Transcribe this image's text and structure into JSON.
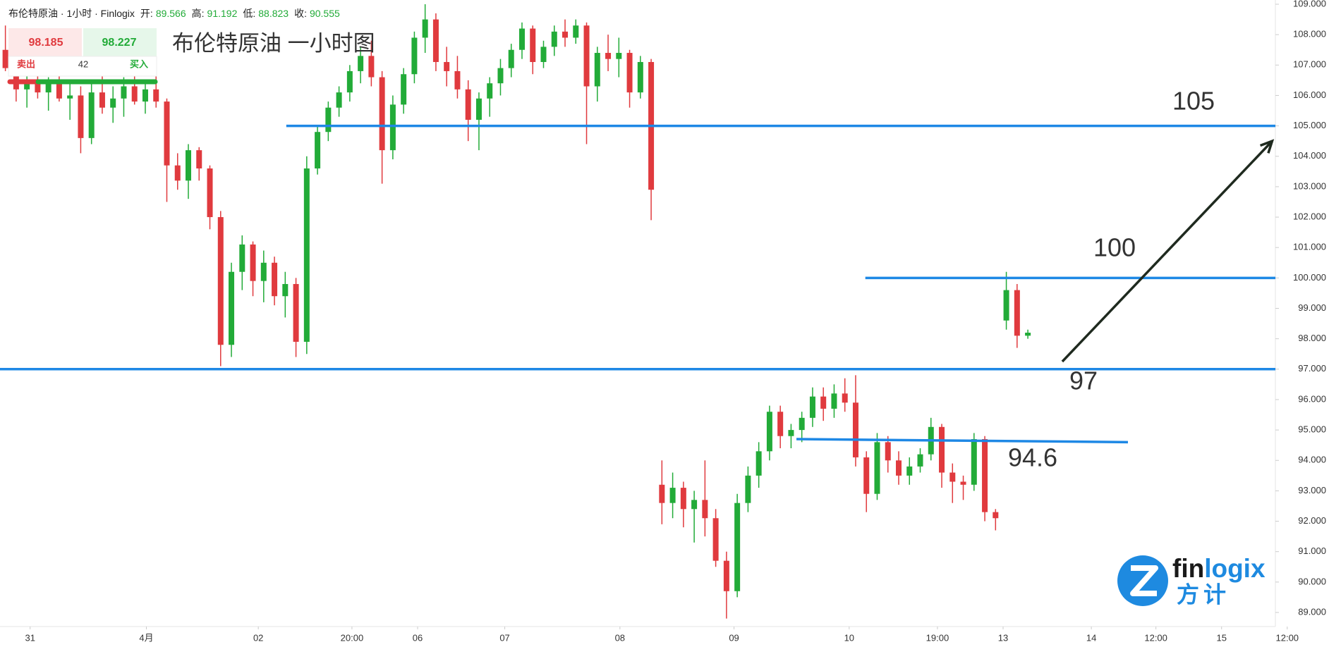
{
  "header": {
    "symbol": "布伦特原油 · 1小时 · Finlogix",
    "open_label": "开:",
    "open": 89.566,
    "high_label": "高:",
    "high": 91.192,
    "low_label": "低:",
    "low": 88.823,
    "close_label": "收:",
    "close": 90.555
  },
  "trade": {
    "sell_price": 98.185,
    "buy_price": 98.227,
    "sell_label": "卖出",
    "buy_label": "买入",
    "quantity": 42
  },
  "logo": {
    "text_a": "fin",
    "text_b": "logix",
    "cn": "方计"
  },
  "chart_data": {
    "type": "candlestick",
    "title": "布伦特原油 一小时图",
    "up_color": "#22ab38",
    "down_color": "#e03a3e",
    "level_color": "#1e88e5",
    "arrow_color": "#1f2a1f",
    "xlim": [
      -0.5,
      118
    ],
    "ylim": [
      89,
      109
    ],
    "xticks": [
      {
        "value": 2.3,
        "label": "31"
      },
      {
        "value": 13.1,
        "label": "4月"
      },
      {
        "value": 23.5,
        "label": "02"
      },
      {
        "value": 32.2,
        "label": "20:00"
      },
      {
        "value": 38.3,
        "label": "06"
      },
      {
        "value": 46.4,
        "label": "07"
      },
      {
        "value": 57.1,
        "label": "08"
      },
      {
        "value": 67.7,
        "label": "09"
      },
      {
        "value": 78.4,
        "label": "10"
      },
      {
        "value": 86.6,
        "label": "19:00"
      },
      {
        "value": 92.7,
        "label": "13"
      },
      {
        "value": 100.9,
        "label": "14"
      },
      {
        "value": 106.9,
        "label": "12:00"
      },
      {
        "value": 113.0,
        "label": "15"
      },
      {
        "value": 119.1,
        "label": "12:00"
      }
    ],
    "yticks": [
      {
        "value": 89,
        "label": "89.000"
      },
      {
        "value": 90,
        "label": "90.000"
      },
      {
        "value": 91,
        "label": "91.000"
      },
      {
        "value": 92,
        "label": "92.000"
      },
      {
        "value": 93,
        "label": "93.000"
      },
      {
        "value": 94,
        "label": "94.000"
      },
      {
        "value": 95,
        "label": "95.000"
      },
      {
        "value": 96,
        "label": "96.000"
      },
      {
        "value": 97,
        "label": "97.000"
      },
      {
        "value": 98,
        "label": "98.000"
      },
      {
        "value": 99,
        "label": "99.000"
      },
      {
        "value": 100,
        "label": "100.000"
      },
      {
        "value": 101,
        "label": "101.000"
      },
      {
        "value": 102,
        "label": "102.000"
      },
      {
        "value": 103,
        "label": "103.000"
      },
      {
        "value": 104,
        "label": "104.000"
      },
      {
        "value": 105,
        "label": "105.000"
      },
      {
        "value": 106,
        "label": "106.000"
      },
      {
        "value": 107,
        "label": "107.000"
      },
      {
        "value": 108,
        "label": "108.000"
      },
      {
        "value": 109,
        "label": "109.000"
      }
    ],
    "open": [
      107.5,
      106.9,
      106.2,
      106.5,
      106.1,
      106.4,
      105.9,
      106.0,
      104.6,
      106.1,
      105.6,
      105.9,
      106.3,
      105.8,
      106.2,
      105.8,
      103.7,
      103.2,
      104.2,
      103.6,
      102.0,
      97.8,
      100.2,
      101.1,
      99.9,
      100.5,
      99.4,
      99.8,
      97.9,
      103.6,
      104.8,
      105.6,
      106.1,
      106.8,
      107.3,
      106.6,
      104.2,
      105.7,
      106.7,
      107.9,
      108.5,
      107.1,
      106.8,
      106.2,
      105.2,
      105.9,
      106.4,
      106.9,
      107.5,
      108.2,
      107.1,
      107.6,
      108.1,
      107.9,
      108.3,
      106.3,
      107.4,
      107.2,
      107.4,
      106.1,
      107.1,
      93.2,
      92.6,
      93.1,
      92.4,
      92.7,
      92.1,
      90.7,
      89.7,
      92.6,
      93.5,
      94.3,
      95.6,
      94.8,
      95.0,
      95.4,
      96.1,
      95.7,
      96.2,
      95.9,
      94.1,
      92.9,
      94.6,
      94.0,
      93.5,
      93.8,
      94.2,
      95.1,
      93.6,
      93.3,
      93.2,
      94.7,
      92.3,
      98.6,
      99.6,
      98.1
    ],
    "high": [
      108.3,
      107.2,
      106.8,
      107.0,
      106.6,
      106.9,
      106.4,
      106.3,
      106.4,
      106.7,
      106.3,
      106.6,
      106.8,
      106.5,
      106.7,
      105.9,
      104.1,
      104.4,
      104.3,
      103.7,
      102.2,
      100.5,
      101.4,
      101.2,
      100.9,
      100.7,
      100.2,
      100.0,
      104.0,
      105.0,
      105.8,
      106.3,
      107.0,
      107.6,
      107.8,
      106.8,
      106.0,
      106.9,
      108.1,
      109.0,
      108.7,
      107.6,
      107.3,
      106.5,
      106.1,
      106.6,
      107.2,
      107.7,
      108.4,
      108.3,
      107.8,
      108.3,
      108.5,
      108.5,
      108.4,
      107.6,
      108.0,
      107.9,
      107.5,
      107.3,
      107.2,
      94.0,
      93.6,
      93.3,
      93.0,
      94.0,
      92.4,
      91.0,
      92.9,
      93.8,
      94.6,
      95.8,
      95.8,
      95.2,
      95.6,
      96.4,
      96.4,
      96.5,
      96.7,
      96.8,
      94.3,
      94.9,
      94.8,
      94.3,
      94.1,
      94.4,
      95.4,
      95.2,
      93.9,
      93.5,
      94.9,
      94.8,
      92.4,
      100.2,
      99.8,
      98.3
    ],
    "low": [
      106.8,
      105.8,
      105.6,
      105.9,
      105.5,
      105.8,
      105.2,
      104.1,
      104.4,
      105.4,
      105.1,
      105.3,
      105.7,
      105.4,
      105.6,
      102.5,
      102.9,
      102.6,
      103.2,
      101.6,
      97.1,
      97.4,
      99.6,
      99.4,
      99.2,
      99.1,
      98.7,
      97.4,
      97.5,
      103.4,
      104.5,
      105.3,
      105.8,
      106.4,
      106.3,
      103.1,
      103.9,
      105.4,
      106.4,
      107.4,
      106.8,
      106.3,
      105.9,
      104.5,
      104.2,
      105.3,
      106.0,
      106.6,
      107.2,
      106.7,
      106.9,
      107.3,
      107.6,
      107.7,
      104.4,
      105.8,
      106.8,
      106.6,
      105.6,
      105.9,
      101.9,
      91.9,
      92.1,
      91.8,
      91.3,
      91.5,
      90.5,
      88.8,
      89.5,
      92.3,
      93.1,
      94.0,
      94.4,
      94.4,
      94.6,
      95.1,
      95.3,
      95.4,
      95.6,
      93.8,
      92.3,
      92.7,
      93.6,
      93.2,
      93.2,
      93.6,
      94.0,
      93.1,
      92.6,
      92.7,
      93.0,
      92.0,
      91.7,
      98.3,
      97.7,
      98.0
    ],
    "close": [
      106.9,
      106.2,
      106.5,
      106.1,
      106.4,
      105.9,
      106.0,
      104.6,
      106.1,
      105.6,
      105.9,
      106.3,
      105.8,
      106.2,
      105.8,
      103.7,
      103.2,
      104.2,
      103.6,
      102.0,
      97.8,
      100.2,
      101.1,
      99.9,
      100.5,
      99.4,
      99.8,
      97.9,
      103.6,
      104.8,
      105.6,
      106.1,
      106.8,
      107.3,
      106.6,
      104.2,
      105.7,
      106.7,
      107.9,
      108.5,
      107.1,
      106.8,
      106.2,
      105.2,
      105.9,
      106.4,
      106.9,
      107.5,
      108.2,
      107.1,
      107.6,
      108.1,
      107.9,
      108.3,
      106.3,
      107.4,
      107.2,
      107.4,
      106.1,
      107.1,
      102.9,
      92.6,
      93.1,
      92.4,
      92.7,
      92.1,
      90.7,
      89.7,
      92.6,
      93.5,
      94.3,
      95.6,
      94.8,
      95.0,
      95.4,
      96.1,
      95.7,
      96.2,
      95.9,
      94.1,
      92.9,
      94.6,
      94.0,
      93.5,
      93.8,
      94.2,
      95.1,
      93.6,
      93.3,
      93.2,
      94.7,
      92.3,
      92.1,
      99.6,
      98.1,
      98.2
    ],
    "levels": [
      {
        "value": 105,
        "x": [
          26.1,
          118
        ]
      },
      {
        "value": 100,
        "x": [
          79.9,
          118
        ]
      },
      {
        "value": 97,
        "x": [
          -0.5,
          118
        ]
      },
      {
        "value": 94.6,
        "start": 94.7,
        "x": [
          73.5,
          104.3
        ]
      }
    ],
    "arrow": {
      "x": [
        98.2,
        117.7
      ],
      "y": [
        97.25,
        104.5
      ]
    }
  }
}
